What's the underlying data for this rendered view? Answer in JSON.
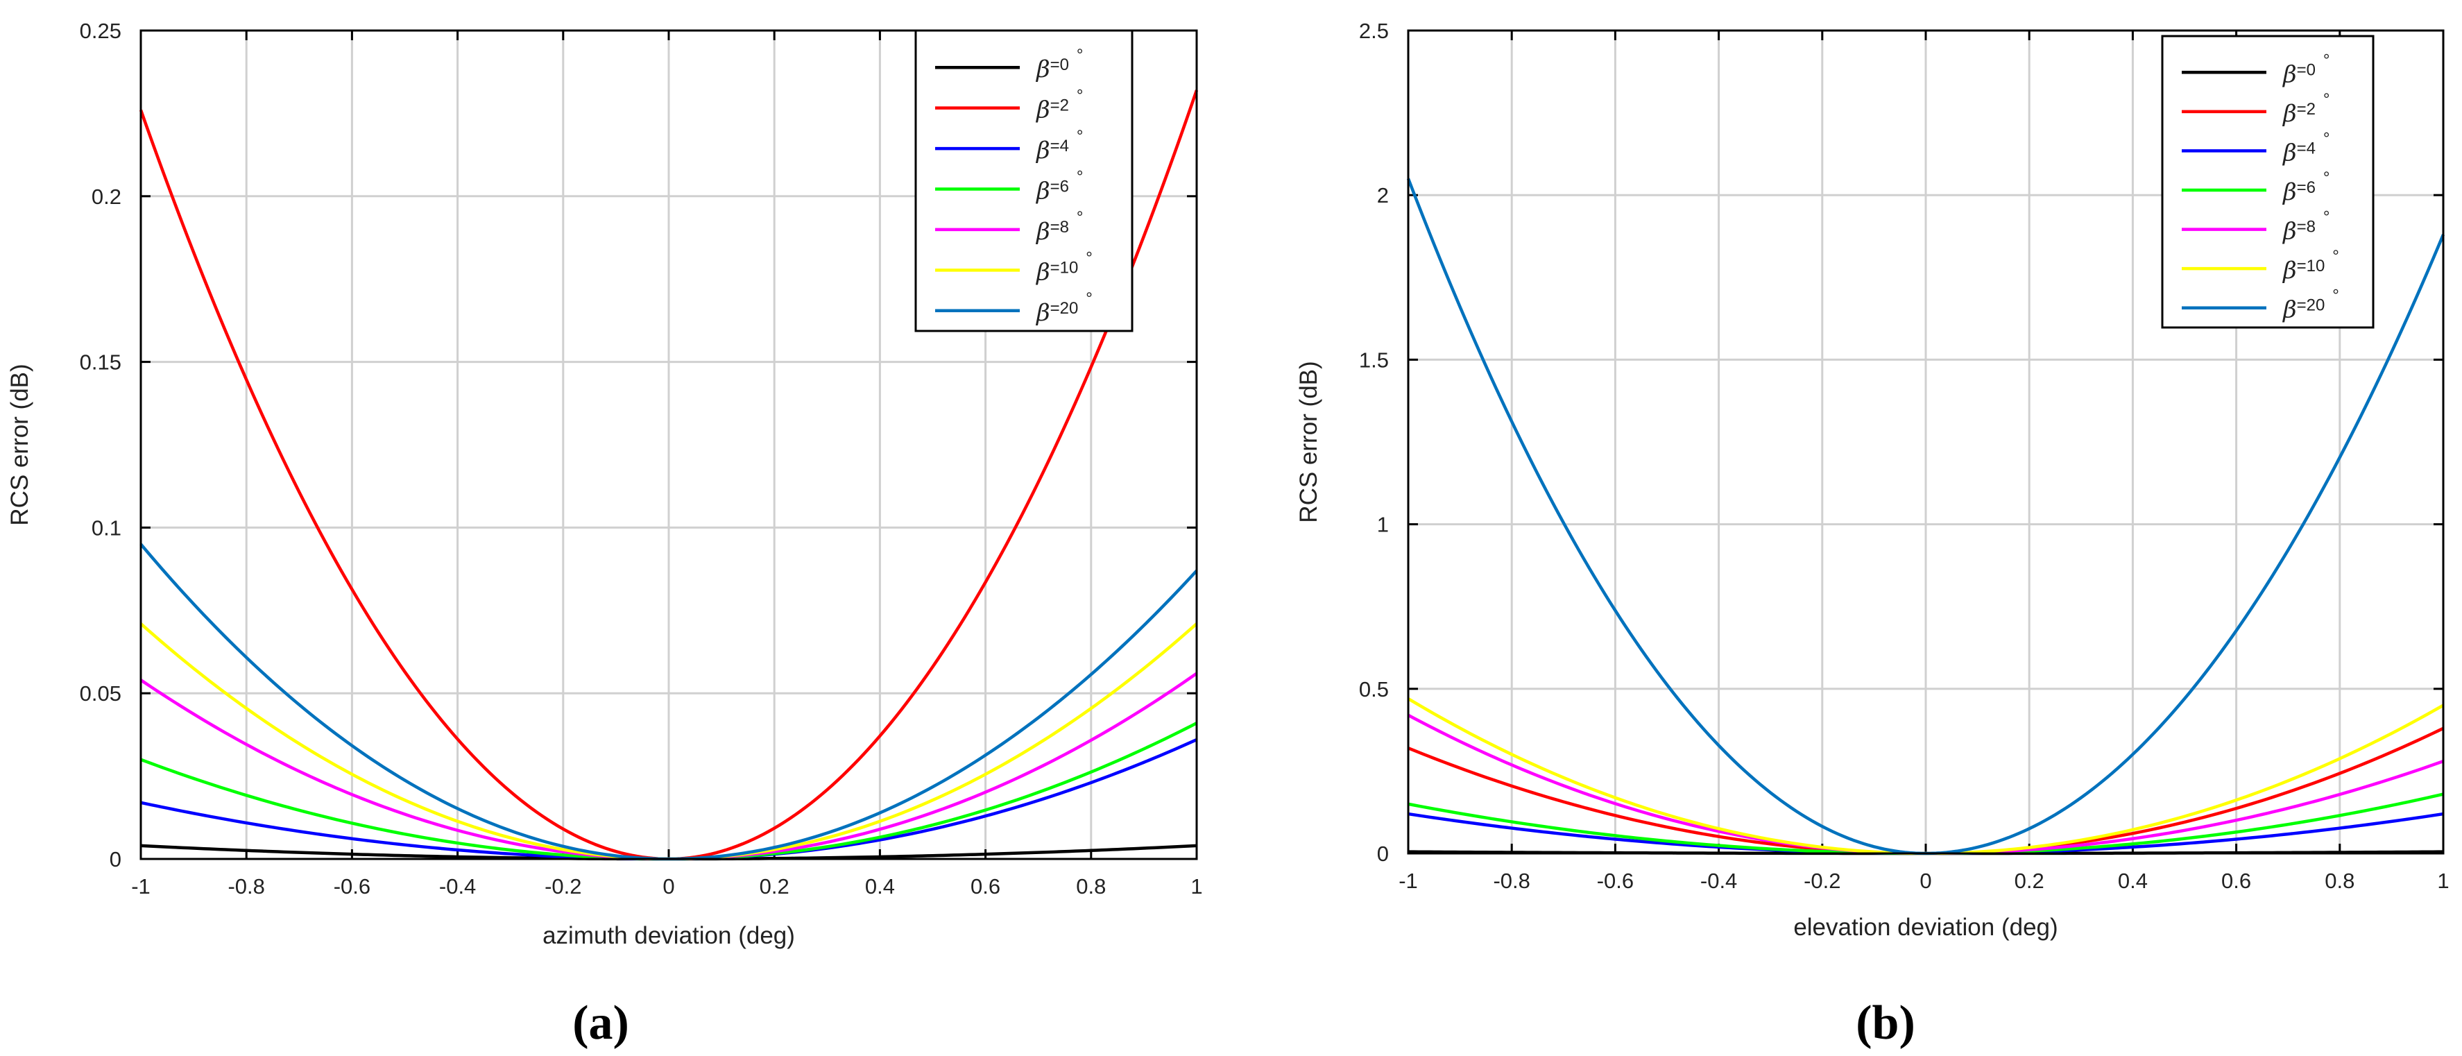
{
  "chart_data": [
    {
      "id": "a",
      "type": "line",
      "panel_label": "(a)",
      "title": "",
      "xlabel": "azimuth deviation (deg)",
      "ylabel": "RCS error (dB)",
      "xlim": [
        -1,
        1
      ],
      "ylim": [
        0,
        0.25
      ],
      "xticks": [
        -1,
        -0.8,
        -0.6,
        -0.4,
        -0.2,
        0,
        0.2,
        0.4,
        0.6,
        0.8,
        1
      ],
      "xtick_labels": [
        "-1",
        "-0.8",
        "-0.6",
        "-0.4",
        "-0.2",
        "0",
        "0.2",
        "0.4",
        "0.6",
        "0.8",
        "1"
      ],
      "yticks": [
        0,
        0.05,
        0.1,
        0.15,
        0.2,
        0.25
      ],
      "ytick_labels": [
        "0",
        "0.05",
        "0.1",
        "0.15",
        "0.2",
        "0.25"
      ],
      "grid": true,
      "legend_position": "top-right",
      "curve_model": "quadratic: y = coef_left * x^2 for x<0, coef_right * x^2 for x>=0",
      "series": [
        {
          "name": "β=0°",
          "beta": "0",
          "color": "#000000",
          "coef_left": 0.004,
          "coef_right": 0.004
        },
        {
          "name": "β=2°",
          "beta": "2",
          "color": "#ff0000",
          "coef_left": 0.226,
          "coef_right": 0.232
        },
        {
          "name": "β=4°",
          "beta": "4",
          "color": "#0000ff",
          "coef_left": 0.017,
          "coef_right": 0.036
        },
        {
          "name": "β=6°",
          "beta": "6",
          "color": "#00ff00",
          "coef_left": 0.03,
          "coef_right": 0.041
        },
        {
          "name": "β=8°",
          "beta": "8",
          "color": "#ff00ff",
          "coef_left": 0.054,
          "coef_right": 0.056
        },
        {
          "name": "β=10°",
          "beta": "10",
          "color": "#ffff00",
          "coef_left": 0.071,
          "coef_right": 0.071
        },
        {
          "name": "β=20°",
          "beta": "20",
          "color": "#0072bd",
          "coef_left": 0.095,
          "coef_right": 0.087
        }
      ]
    },
    {
      "id": "b",
      "type": "line",
      "panel_label": "(b)",
      "title": "",
      "xlabel": "elevation deviation (deg)",
      "ylabel": "RCS error (dB)",
      "xlim": [
        -1,
        1
      ],
      "ylim": [
        0,
        2.5
      ],
      "xticks": [
        -1,
        -0.8,
        -0.6,
        -0.4,
        -0.2,
        0,
        0.2,
        0.4,
        0.6,
        0.8,
        1
      ],
      "xtick_labels": [
        "-1",
        "-0.8",
        "-0.6",
        "-0.4",
        "-0.2",
        "0",
        "0.2",
        "0.4",
        "0.6",
        "0.8",
        "1"
      ],
      "yticks": [
        0,
        0.5,
        1,
        1.5,
        2,
        2.5
      ],
      "ytick_labels": [
        "0",
        "0.5",
        "1",
        "1.5",
        "2",
        "2.5"
      ],
      "grid": true,
      "legend_position": "top-right",
      "curve_model": "quadratic: y = coef_left * x^2 for x<0, coef_right * x^2 for x>=0",
      "series": [
        {
          "name": "β=0°",
          "beta": "0",
          "color": "#000000",
          "coef_left": 0.005,
          "coef_right": 0.005
        },
        {
          "name": "β=2°",
          "beta": "2",
          "color": "#ff0000",
          "coef_left": 0.32,
          "coef_right": 0.38
        },
        {
          "name": "β=4°",
          "beta": "4",
          "color": "#0000ff",
          "coef_left": 0.12,
          "coef_right": 0.12
        },
        {
          "name": "β=6°",
          "beta": "6",
          "color": "#00ff00",
          "coef_left": 0.15,
          "coef_right": 0.18
        },
        {
          "name": "β=8°",
          "beta": "8",
          "color": "#ff00ff",
          "coef_left": 0.42,
          "coef_right": 0.28
        },
        {
          "name": "β=10°",
          "beta": "10",
          "color": "#ffff00",
          "coef_left": 0.47,
          "coef_right": 0.45
        },
        {
          "name": "β=20°",
          "beta": "20",
          "color": "#0072bd",
          "coef_left": 2.05,
          "coef_right": 1.88
        }
      ]
    }
  ]
}
